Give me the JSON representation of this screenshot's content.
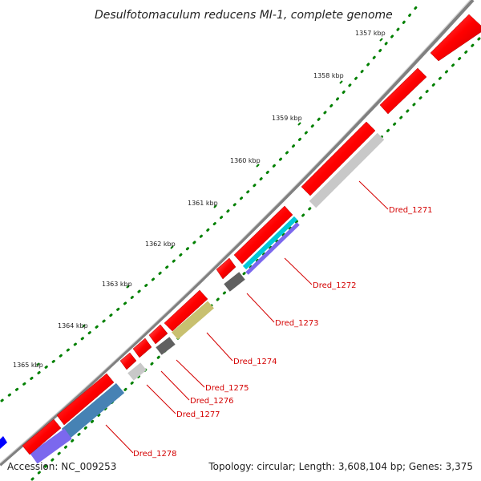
{
  "title": "Desulfotomaculum reducens MI-1, complete genome",
  "footer": {
    "accession": "Accession: NC_009253",
    "summary": "Topology: circular; Length: 3,608,104 bp; Genes: 3,375"
  },
  "ticks": [
    "1357 kbp",
    "1358 kbp",
    "1359 kbp",
    "1360 kbp",
    "1361 kbp",
    "1362 kbp",
    "1363 kbp",
    "1364 kbp",
    "1365 kbp"
  ],
  "genes": [
    "Dred_1271",
    "Dred_1272",
    "Dred_1273",
    "Dred_1274",
    "Dred_1275",
    "Dred_1276",
    "Dred_1277",
    "Dred_1278"
  ],
  "colors": {
    "cds": "#ff0000",
    "backbone": "#808080",
    "tick": "#008000",
    "label": "#d40000",
    "cog_gray": "#c8c8c8",
    "cog_dark": "#606060",
    "cog_cyan": "#00c8d8",
    "cog_khaki": "#c8c070",
    "cog_steel": "#4682b4",
    "cog_slate": "#7b68ee",
    "blue": "#0000ff"
  }
}
